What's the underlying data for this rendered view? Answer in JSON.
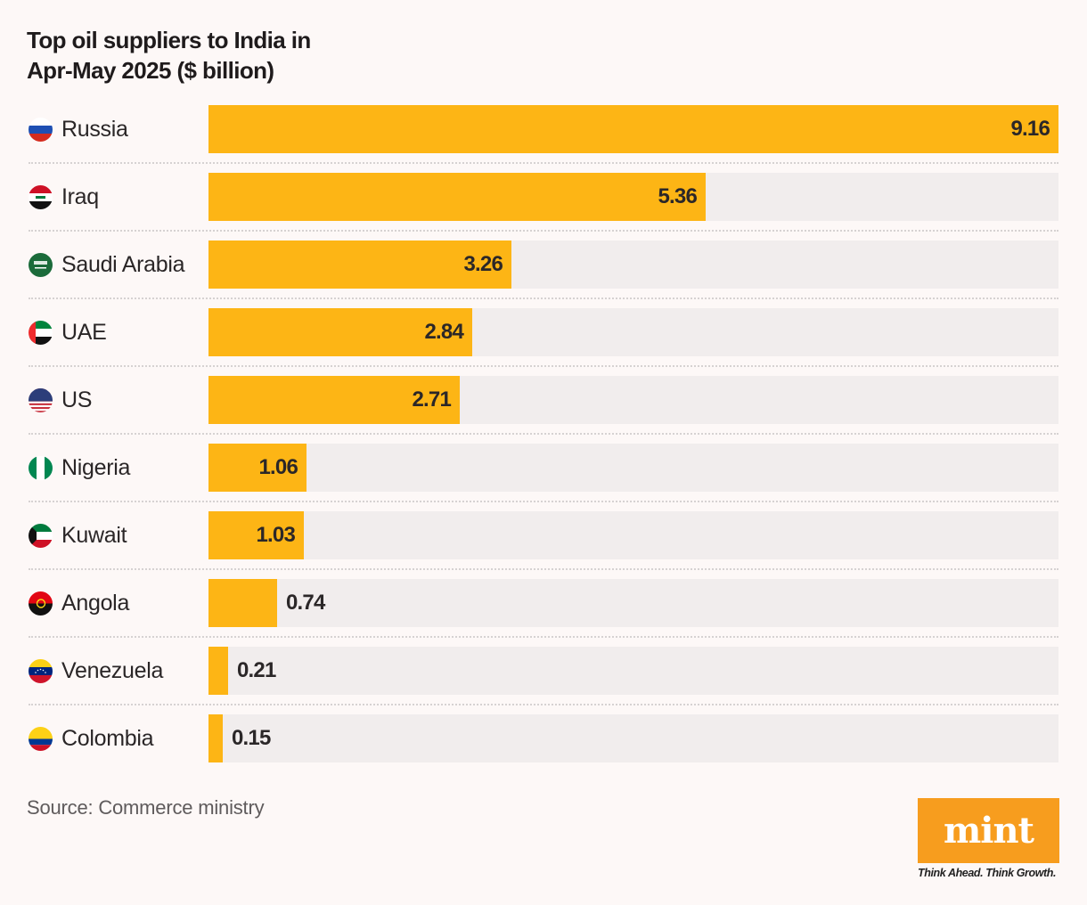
{
  "chart_data": {
    "type": "bar",
    "orientation": "horizontal",
    "title": "Top oil suppliers to India in Apr-May 2025 ($ billion)",
    "title_lines": [
      "Top oil suppliers to India in",
      "Apr-May 2025 ($ billion)"
    ],
    "xlabel": "",
    "ylabel": "",
    "unit": "$ billion",
    "xlim": [
      0,
      9.16
    ],
    "grid": false,
    "legend": "none",
    "bar_color": "#fdb515",
    "track_color": "#f1eded",
    "categories": [
      "Russia",
      "Iraq",
      "Saudi Arabia",
      "UAE",
      "US",
      "Nigeria",
      "Kuwait",
      "Angola",
      "Venezuela",
      "Colombia"
    ],
    "values": [
      9.16,
      5.36,
      3.26,
      2.84,
      2.71,
      1.06,
      1.03,
      0.74,
      0.21,
      0.15
    ],
    "value_labels": [
      "9.16",
      "5.36",
      "3.26",
      "2.84",
      "2.71",
      "1.06",
      "1.03",
      "0.74",
      "0.21",
      "0.15"
    ],
    "flags": [
      "russia-flag-icon",
      "iraq-flag-icon",
      "saudi-arabia-flag-icon",
      "uae-flag-icon",
      "us-flag-icon",
      "nigeria-flag-icon",
      "kuwait-flag-icon",
      "angola-flag-icon",
      "venezuela-flag-icon",
      "colombia-flag-icon"
    ]
  },
  "footer": {
    "source": "Source: Commerce ministry",
    "logo_text": "mint",
    "tagline": "Think Ahead. Think Growth.",
    "logo_color": "#f79d1e"
  }
}
